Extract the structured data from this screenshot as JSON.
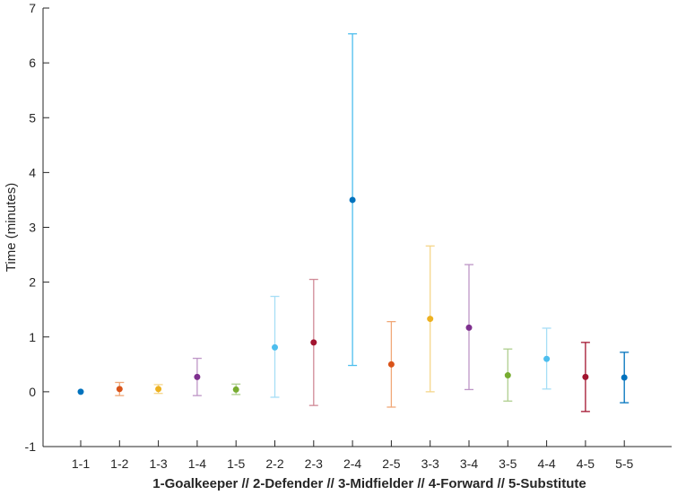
{
  "chart_data": {
    "type": "scatter",
    "variant": "errorbar",
    "title": "",
    "xlabel": "1-Goalkeeper // 2-Defender // 3-Midfielder // 4-Forward // 5-Substitute",
    "ylabel": "Time (minutes)",
    "ylim": [
      -1,
      7
    ],
    "yticks": [
      -1,
      0,
      1,
      2,
      3,
      4,
      5,
      6,
      7
    ],
    "grid": false,
    "categories": [
      "1-1",
      "1-2",
      "1-3",
      "1-4",
      "1-5",
      "2-2",
      "2-3",
      "2-4",
      "2-5",
      "3-3",
      "3-4",
      "3-5",
      "4-4",
      "4-5",
      "5-5"
    ],
    "values": [
      0.0,
      0.05,
      0.05,
      0.27,
      0.04,
      0.81,
      0.9,
      3.5,
      0.5,
      1.33,
      1.17,
      0.3,
      0.6,
      0.27,
      0.26
    ],
    "lower": [
      0.0,
      -0.07,
      -0.03,
      -0.07,
      -0.05,
      -0.1,
      -0.25,
      0.48,
      -0.28,
      0.0,
      0.04,
      -0.17,
      0.05,
      -0.36,
      -0.2
    ],
    "upper": [
      0.0,
      0.17,
      0.13,
      0.61,
      0.14,
      1.74,
      2.05,
      6.53,
      1.28,
      2.66,
      2.32,
      0.78,
      1.16,
      0.9,
      0.72
    ],
    "colors": [
      "#0072BD",
      "#D95319",
      "#EDB120",
      "#7E2F8E",
      "#77AC30",
      "#4DBEEE",
      "#A2142F",
      "#4DBEEE",
      "#D95319",
      "#EDB120",
      "#7E2F8E",
      "#77AC30",
      "#4DBEEE",
      "#A2142F",
      "#0072BD"
    ],
    "bar_colors": [
      "#0072BD",
      "#F0A878",
      "#F5D68A",
      "#BE96C6",
      "#AFCF8E",
      "#A6DEF6",
      "#D08A97",
      "#4DBEEE",
      "#F0A878",
      "#F5D68A",
      "#BE96C6",
      "#AFCF8E",
      "#A6DEF6",
      "#A2142F",
      "#0072BD"
    ],
    "marker_colors": [
      "#0072BD",
      "#D95319",
      "#EDB120",
      "#7E2F8E",
      "#77AC30",
      "#4DBEEE",
      "#A2142F",
      "#0072BD",
      "#D95319",
      "#EDB120",
      "#7E2F8E",
      "#77AC30",
      "#4DBEEE",
      "#A2142F",
      "#0072BD"
    ]
  }
}
